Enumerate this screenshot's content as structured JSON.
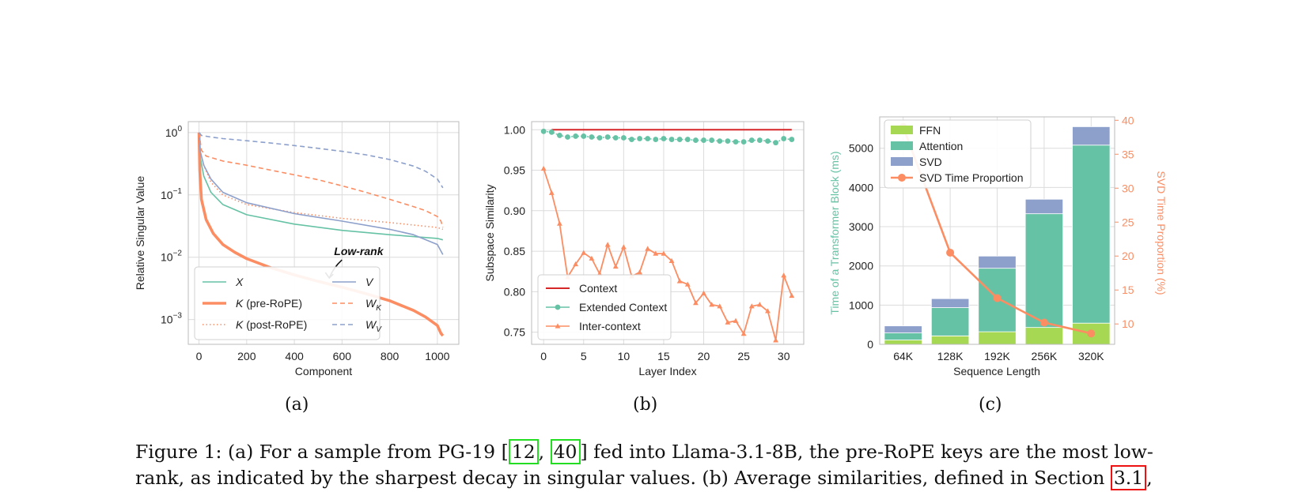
{
  "colors": {
    "green": "#66c2a5",
    "orange": "#fc8d62",
    "blue": "#8da0cb",
    "lime": "#a6d854",
    "red": "#d62728"
  },
  "panel_a": {
    "chart_data": {
      "type": "line",
      "xlabel": "Component",
      "ylabel": "Relative Singular Value",
      "xlim": [
        -45,
        1090
      ],
      "x_ticks": [
        0,
        200,
        400,
        600,
        800,
        1000
      ],
      "yscale": "log",
      "ylim": [
        0.0004,
        1.5
      ],
      "y_ticks": [
        "10^0",
        "10^-1",
        "10^-2",
        "10^-3"
      ],
      "grid": true,
      "legend_position": "bottom-left",
      "annotation": {
        "text": "Low-rank",
        "at_x": 550,
        "at_y": 0.0045
      },
      "series": [
        {
          "name": "X",
          "style": "solid",
          "color": "green",
          "x": [
            0,
            5,
            20,
            50,
            100,
            200,
            400,
            600,
            800,
            1000,
            1023
          ],
          "y": [
            1.0,
            0.4,
            0.2,
            0.11,
            0.07,
            0.048,
            0.034,
            0.027,
            0.023,
            0.02,
            0.019
          ]
        },
        {
          "name": "K",
          "name_suffix": "(pre-RoPE)",
          "style": "thick",
          "color": "orange",
          "x": [
            0,
            3,
            10,
            30,
            60,
            100,
            150,
            200,
            300,
            400,
            500,
            600,
            700,
            800,
            900,
            950,
            1000,
            1015,
            1023
          ],
          "y": [
            1.0,
            0.25,
            0.085,
            0.04,
            0.024,
            0.016,
            0.012,
            0.0095,
            0.0068,
            0.0052,
            0.0041,
            0.0033,
            0.0026,
            0.002,
            0.0014,
            0.0011,
            0.0008,
            0.0006,
            0.00055
          ]
        },
        {
          "name": "K",
          "name_suffix": "(post-RoPE)",
          "style": "dotted",
          "color": "orange",
          "x": [
            0,
            5,
            20,
            50,
            100,
            200,
            400,
            600,
            800,
            1000,
            1023
          ],
          "y": [
            1.0,
            0.5,
            0.3,
            0.16,
            0.1,
            0.07,
            0.052,
            0.042,
            0.036,
            0.03,
            0.028
          ]
        },
        {
          "name": "V",
          "style": "solid",
          "color": "blue",
          "x": [
            0,
            5,
            20,
            50,
            100,
            200,
            400,
            600,
            800,
            900,
            1000,
            1023
          ],
          "y": [
            1.0,
            0.5,
            0.3,
            0.18,
            0.11,
            0.075,
            0.05,
            0.038,
            0.028,
            0.023,
            0.016,
            0.011
          ]
        },
        {
          "name": "W",
          "name_sub": "K",
          "style": "dashed",
          "color": "orange",
          "x": [
            0,
            10,
            30,
            100,
            200,
            300,
            400,
            500,
            600,
            700,
            800,
            900,
            950,
            1000,
            1015,
            1023
          ],
          "y": [
            1.0,
            0.52,
            0.42,
            0.35,
            0.3,
            0.25,
            0.21,
            0.175,
            0.14,
            0.11,
            0.085,
            0.065,
            0.056,
            0.045,
            0.038,
            0.03
          ]
        },
        {
          "name": "W",
          "name_sub": "V",
          "style": "dashed",
          "color": "blue",
          "x": [
            0,
            10,
            50,
            100,
            200,
            300,
            400,
            500,
            600,
            700,
            800,
            900,
            950,
            1000,
            1023
          ],
          "y": [
            1.0,
            0.9,
            0.85,
            0.8,
            0.74,
            0.68,
            0.62,
            0.56,
            0.5,
            0.44,
            0.37,
            0.29,
            0.24,
            0.18,
            0.13
          ]
        }
      ]
    }
  },
  "panel_b": {
    "chart_data": {
      "type": "line",
      "xlabel": "Layer Index",
      "ylabel": "Subspace Similarity",
      "xlim": [
        -1.5,
        32.5
      ],
      "x_ticks": [
        0,
        5,
        10,
        15,
        20,
        25,
        30
      ],
      "ylim": [
        0.735,
        1.01
      ],
      "y_ticks": [
        "0.75",
        "0.80",
        "0.85",
        "0.90",
        "0.95",
        "1.00"
      ],
      "grid": true,
      "legend_position": "bottom-left",
      "series": [
        {
          "name": "Context",
          "style": "solid",
          "color": "red",
          "x": [
            1,
            31
          ],
          "y": [
            1.0,
            1.0
          ]
        },
        {
          "name": "Extended Context",
          "style": "dots",
          "color": "green",
          "x": [
            0,
            1,
            2,
            3,
            4,
            5,
            6,
            7,
            8,
            9,
            10,
            11,
            12,
            13,
            14,
            15,
            16,
            17,
            18,
            19,
            20,
            21,
            22,
            23,
            24,
            25,
            26,
            27,
            28,
            29,
            30,
            31
          ],
          "y": [
            0.998,
            0.997,
            0.993,
            0.991,
            0.992,
            0.992,
            0.991,
            0.99,
            0.991,
            0.99,
            0.99,
            0.988,
            0.989,
            0.989,
            0.988,
            0.989,
            0.988,
            0.988,
            0.988,
            0.987,
            0.987,
            0.987,
            0.986,
            0.986,
            0.985,
            0.985,
            0.987,
            0.987,
            0.986,
            0.984,
            0.989,
            0.988
          ]
        },
        {
          "name": "Inter-context",
          "style": "triangles",
          "color": "orange",
          "x": [
            0,
            1,
            2,
            3,
            4,
            5,
            6,
            7,
            8,
            9,
            10,
            11,
            12,
            13,
            14,
            15,
            16,
            17,
            18,
            19,
            20,
            21,
            22,
            23,
            24,
            25,
            26,
            27,
            28,
            29,
            30,
            31
          ],
          "y": [
            0.952,
            0.922,
            0.884,
            0.818,
            0.834,
            0.848,
            0.841,
            0.822,
            0.858,
            0.831,
            0.855,
            0.819,
            0.824,
            0.853,
            0.847,
            0.847,
            0.838,
            0.813,
            0.809,
            0.786,
            0.798,
            0.784,
            0.782,
            0.762,
            0.764,
            0.748,
            0.782,
            0.784,
            0.776,
            0.74,
            0.82,
            0.795
          ]
        }
      ]
    }
  },
  "panel_c": {
    "chart_data": {
      "type": "bar",
      "stacked": true,
      "xlabel": "Sequence Length",
      "ylabel": "Time of a Transformer Block (ms)",
      "y2label": "SVD Time Proportion (%)",
      "categories": [
        "64K",
        "128K",
        "192K",
        "256K",
        "320K"
      ],
      "ylim": [
        0,
        5800
      ],
      "y_ticks": [
        "0",
        "1000",
        "2000",
        "3000",
        "4000",
        "5000"
      ],
      "y2lim": [
        7,
        40.5
      ],
      "y2_ticks": [
        "10",
        "15",
        "20",
        "25",
        "30",
        "35",
        "40"
      ],
      "grid": true,
      "legend_position": "top-left",
      "series": [
        {
          "name": "FFN",
          "color": "lime",
          "values": [
            110,
            215,
            320,
            430,
            540
          ]
        },
        {
          "name": "Attention",
          "color": "green",
          "values": [
            180,
            720,
            1620,
            2900,
            4540
          ]
        },
        {
          "name": "SVD",
          "color": "blue",
          "values": [
            180,
            230,
            310,
            370,
            470
          ]
        }
      ],
      "line_series": {
        "name": "SVD Time Proportion",
        "color": "orange",
        "axis": "right",
        "values": [
          39,
          20.5,
          13.8,
          10.2,
          8.6
        ]
      }
    }
  },
  "subcaptions": {
    "a": "(a)",
    "b": "(b)",
    "c": "(c)"
  },
  "caption": {
    "part1": "Figure 1: (a) For a sample from PG-19 [",
    "ref1": "12",
    "sep": ", ",
    "ref2": "40",
    "part2": "] fed into Llama-3.1-8B, the pre-RoPE keys are the most low-rank, as indicated by the sharpest decay in singular values. (b) Average similarities, defined in Section ",
    "ref3": "3.1",
    "part3": ","
  }
}
